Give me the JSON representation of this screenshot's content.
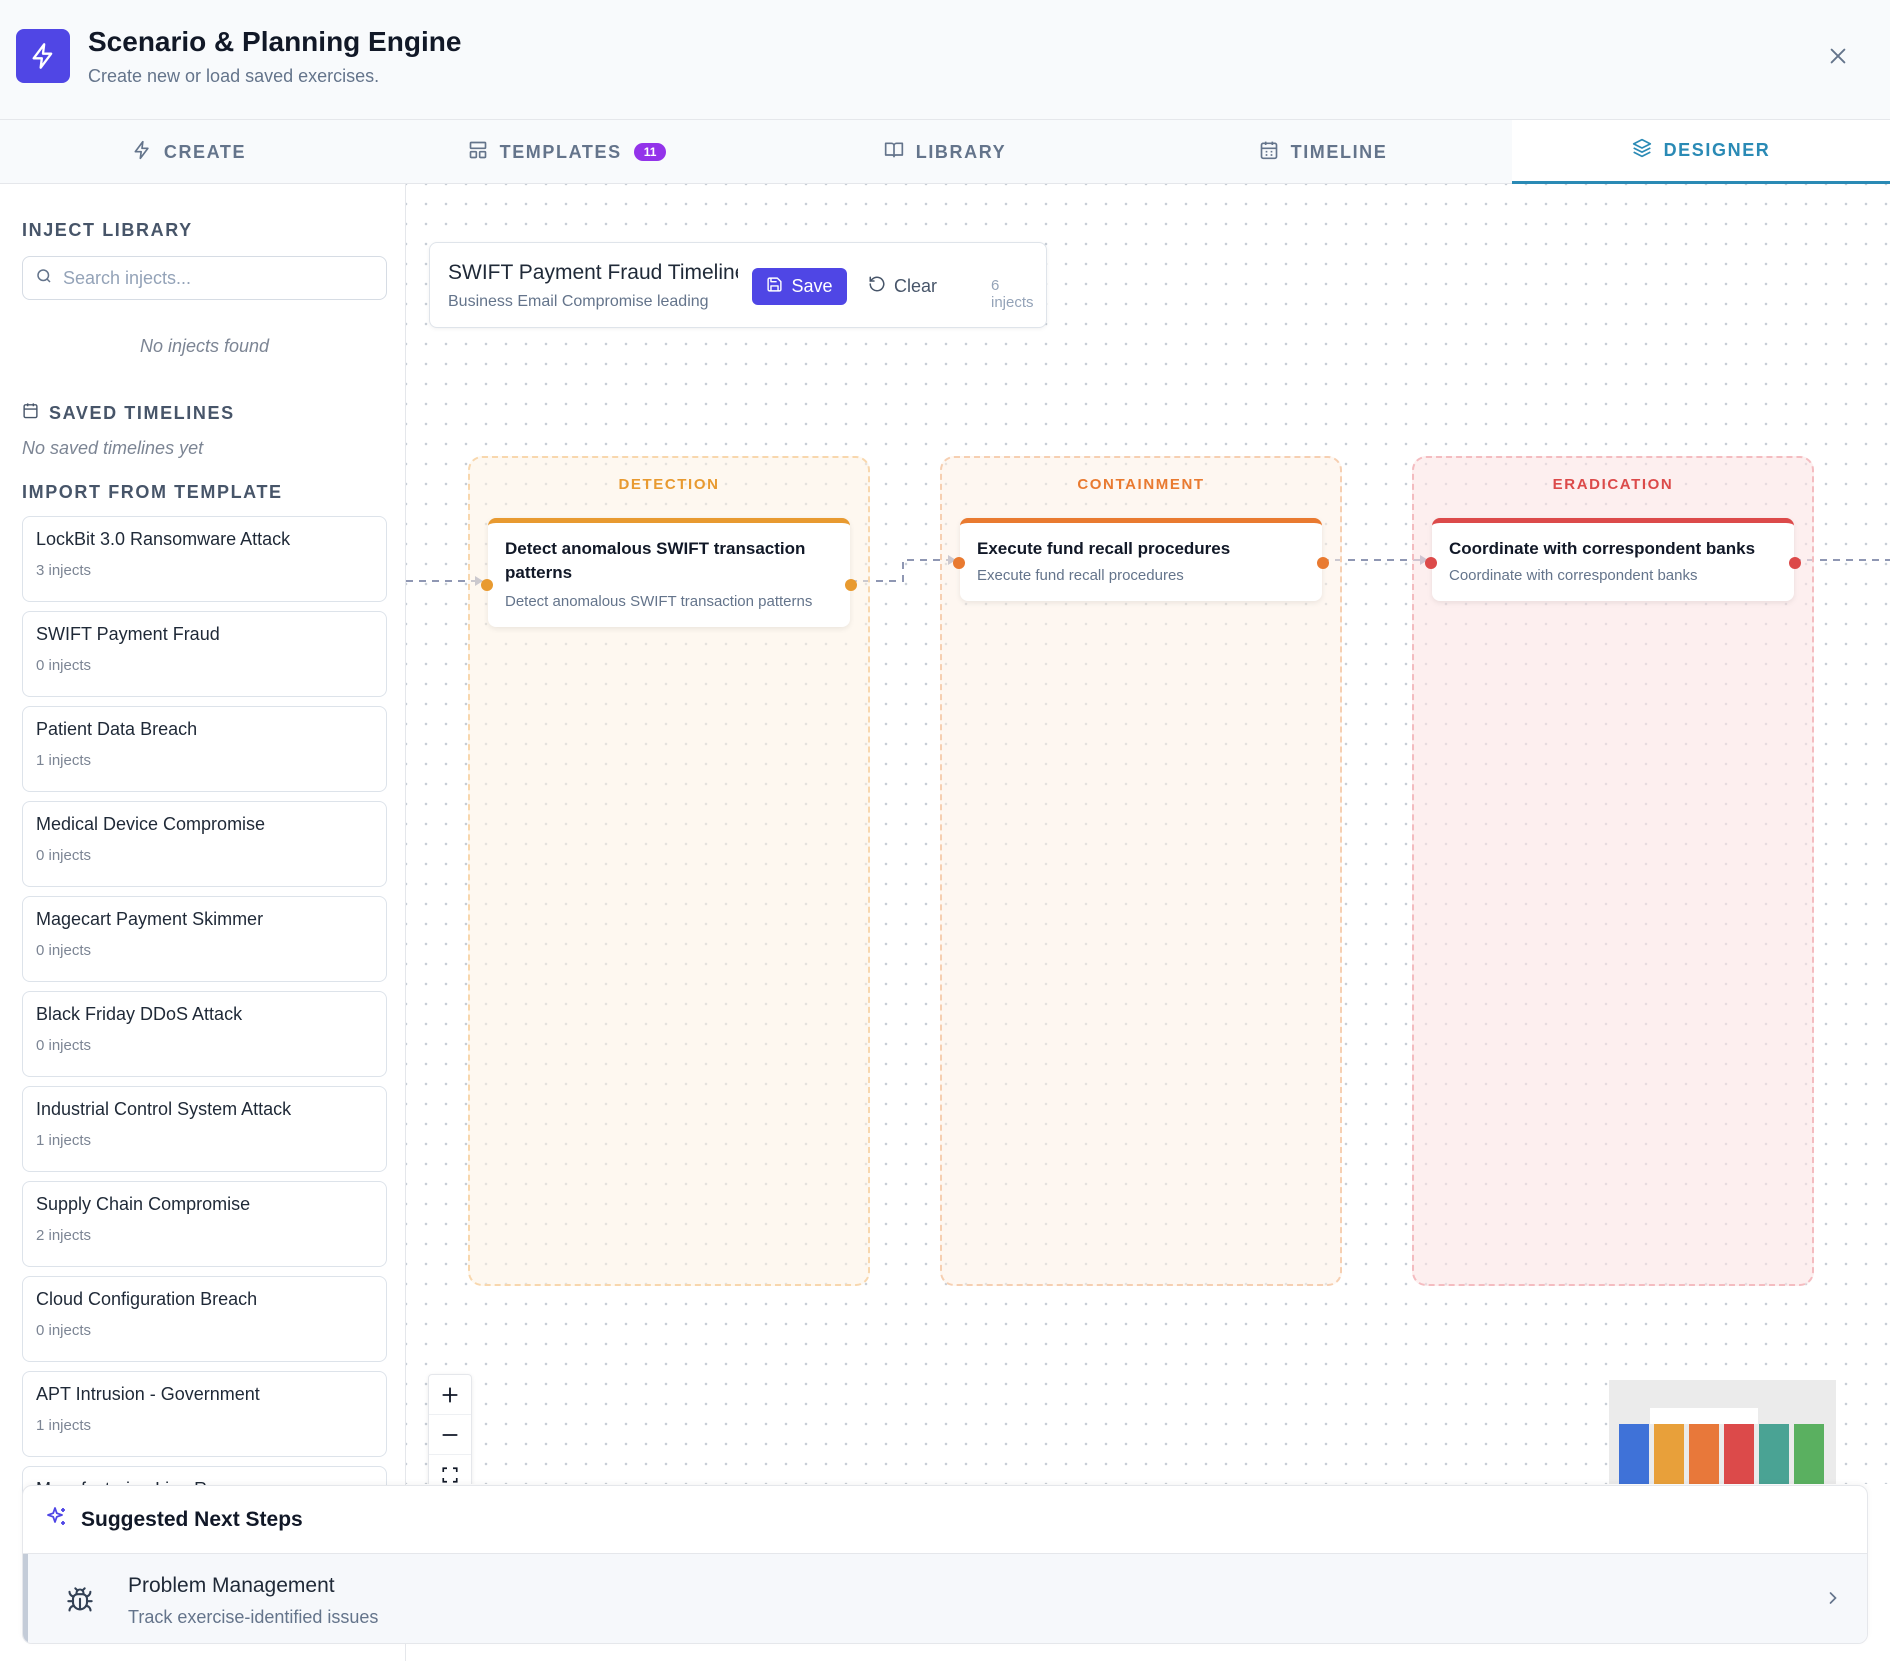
{
  "header": {
    "title": "Scenario & Planning Engine",
    "subtitle": "Create new or load saved exercises.",
    "accent": "#5046e5"
  },
  "tabs": [
    {
      "label": "CREATE",
      "icon": "bolt-icon"
    },
    {
      "label": "TEMPLATES",
      "icon": "layout-icon",
      "badge": "11"
    },
    {
      "label": "LIBRARY",
      "icon": "book-icon"
    },
    {
      "label": "TIMELINE",
      "icon": "calendar-icon"
    },
    {
      "label": "DESIGNER",
      "icon": "layers-icon",
      "active": true
    }
  ],
  "sidebar": {
    "inject_library_title": "INJECT LIBRARY",
    "search_placeholder": "Search injects...",
    "no_injects": "No injects found",
    "saved_timelines_title": "SAVED TIMELINES",
    "no_saved": "No saved timelines yet",
    "import_title": "IMPORT FROM TEMPLATE",
    "templates": [
      {
        "name": "LockBit 3.0 Ransomware Attack",
        "count": "3 injects"
      },
      {
        "name": "SWIFT Payment Fraud",
        "count": "0 injects"
      },
      {
        "name": "Patient Data Breach",
        "count": "1 injects"
      },
      {
        "name": "Medical Device Compromise",
        "count": "0 injects"
      },
      {
        "name": "Magecart Payment Skimmer",
        "count": "0 injects"
      },
      {
        "name": "Black Friday DDoS Attack",
        "count": "0 injects"
      },
      {
        "name": "Industrial Control System Attack",
        "count": "1 injects"
      },
      {
        "name": "Supply Chain Compromise",
        "count": "2 injects"
      },
      {
        "name": "Cloud Configuration Breach",
        "count": "0 injects"
      },
      {
        "name": "APT Intrusion - Government",
        "count": "1 injects"
      },
      {
        "name": "Manufacturing Line R...",
        "count": ""
      }
    ]
  },
  "designer": {
    "timeline_name": "SWIFT Payment Fraud Timeline",
    "timeline_desc": "Business Email Compromise leading",
    "save_label": "Save",
    "clear_label": "Clear",
    "inject_count": "6 injects",
    "phases": [
      {
        "title": "DETECTION",
        "color": "#e89a30",
        "node_title": "Detect anomalous SWIFT transaction patterns",
        "node_desc": "Detect anomalous SWIFT transaction patterns"
      },
      {
        "title": "CONTAINMENT",
        "color": "#e97a30",
        "node_title": "Execute fund recall procedures",
        "node_desc": "Execute fund recall procedures"
      },
      {
        "title": "ERADICATION",
        "color": "#dc4a4a",
        "node_title": "Coordinate with correspondent banks",
        "node_desc": "Coordinate with correspondent banks"
      }
    ],
    "minimap_colors": [
      "#3f72d8",
      "#e8a03a",
      "#e8783a",
      "#dc4a4a",
      "#4aa394",
      "#5ab060"
    ]
  },
  "suggestions": {
    "title": "Suggested Next Steps",
    "items": [
      {
        "title": "Problem Management",
        "subtitle": "Track exercise-identified issues",
        "icon": "bug-icon"
      }
    ]
  }
}
